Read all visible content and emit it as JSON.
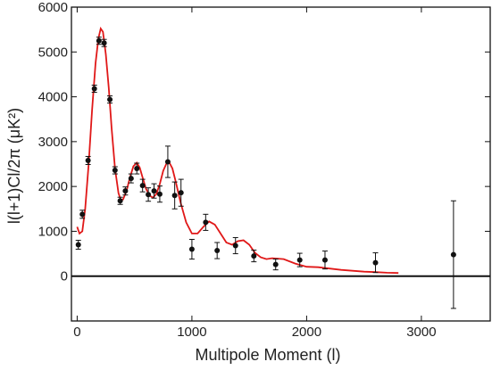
{
  "chart_data": {
    "type": "scatter",
    "title": "",
    "xlabel": "Multipole Moment (l)",
    "ylabel": "l(l+1)Cl/2π (μK²)",
    "xlim": [
      -50,
      3600
    ],
    "ylim": [
      -1000,
      6000
    ],
    "grid": false,
    "legend": "none",
    "x_ticks": [
      0,
      1000,
      2000,
      3000
    ],
    "y_ticks": [
      0,
      1000,
      2000,
      3000,
      4000,
      5000,
      6000
    ],
    "colors": {
      "data": "#111111",
      "model": "#e01818",
      "axis": "#111111"
    },
    "series": [
      {
        "kind": "points",
        "x": [
          10,
          45,
          95,
          150,
          190,
          235,
          285,
          330,
          375,
          420,
          470,
          520,
          570,
          620,
          670,
          720,
          790,
          850,
          905,
          1000,
          1120,
          1220,
          1380,
          1540,
          1730,
          1940,
          2160,
          2600,
          3280
        ],
        "y": [
          700,
          1380,
          2580,
          4180,
          5250,
          5200,
          3940,
          2360,
          1680,
          1900,
          2180,
          2400,
          2020,
          1820,
          1900,
          1830,
          2550,
          1800,
          1860,
          600,
          1200,
          570,
          680,
          450,
          260,
          360,
          360,
          300,
          480
        ],
        "err": [
          100,
          90,
          90,
          80,
          80,
          80,
          80,
          80,
          80,
          90,
          100,
          120,
          140,
          150,
          160,
          180,
          350,
          300,
          300,
          220,
          180,
          180,
          180,
          130,
          120,
          150,
          200,
          220,
          1200
        ]
      },
      {
        "kind": "curve",
        "x": [
          0,
          20,
          45,
          70,
          100,
          130,
          160,
          185,
          205,
          225,
          250,
          275,
          300,
          330,
          360,
          380,
          400,
          430,
          460,
          490,
          520,
          545,
          570,
          600,
          630,
          660,
          690,
          720,
          750,
          780,
          800,
          830,
          860,
          900,
          950,
          1000,
          1050,
          1100,
          1150,
          1200,
          1250,
          1300,
          1350,
          1400,
          1450,
          1500,
          1550,
          1600,
          1650,
          1700,
          1800,
          1900,
          2000,
          2100,
          2200,
          2300,
          2400,
          2500,
          2600,
          2700,
          2800
        ],
        "y": [
          1100,
          950,
          1000,
          1500,
          2500,
          3700,
          4750,
          5300,
          5520,
          5450,
          4950,
          4200,
          3300,
          2400,
          1850,
          1700,
          1710,
          1900,
          2200,
          2450,
          2530,
          2420,
          2200,
          1950,
          1800,
          1750,
          1830,
          2050,
          2350,
          2520,
          2550,
          2400,
          2100,
          1650,
          1200,
          950,
          950,
          1100,
          1220,
          1150,
          950,
          750,
          700,
          780,
          800,
          700,
          520,
          420,
          380,
          400,
          380,
          280,
          210,
          200,
          170,
          140,
          120,
          100,
          90,
          75,
          70
        ]
      }
    ]
  }
}
